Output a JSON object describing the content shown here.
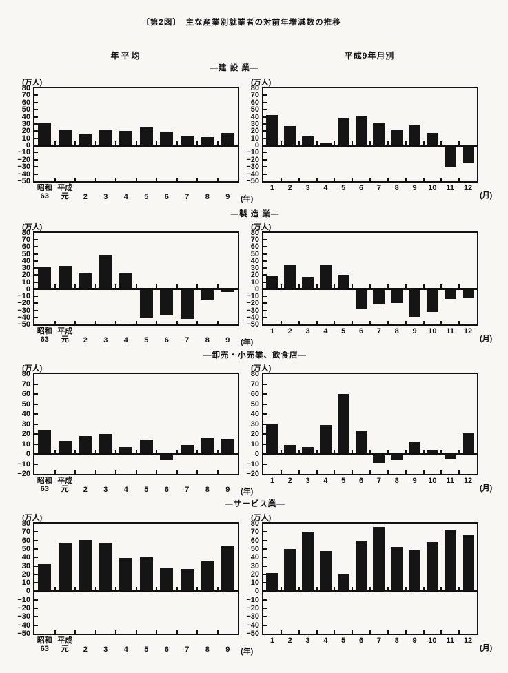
{
  "page": {
    "title": "〔第2図〕　主な産業別就業者の対前年増減数の推移",
    "column_headers": {
      "left": "年平均",
      "right": "平成9年月別"
    }
  },
  "rows": [
    {
      "title": "―建 設 業―"
    },
    {
      "title": "―製 造 業―"
    },
    {
      "title": "―卸売・小売業、飲食店―"
    },
    {
      "title": "―サービス業―"
    }
  ],
  "colors": {
    "bar": "#151515",
    "frame": "#111111",
    "background": "#f8f7f3"
  },
  "chart_data": [
    {
      "type": "bar",
      "industry": "建設業",
      "panel": "年平均",
      "ylabel": "(万人)",
      "ylim": [
        -50,
        80
      ],
      "ytick_step": 10,
      "categories": [
        "昭和\n63",
        "平成\n元",
        "2",
        "3",
        "4",
        "5",
        "6",
        "7",
        "8",
        "9"
      ],
      "x_suffix": "(年)",
      "values": [
        30,
        21,
        15,
        20,
        19,
        24,
        18,
        11,
        10,
        16
      ]
    },
    {
      "type": "bar",
      "industry": "建設業",
      "panel": "平成9年月別",
      "ylabel": "(万人)",
      "ylim": [
        -50,
        80
      ],
      "ytick_step": 10,
      "categories": [
        "1",
        "2",
        "3",
        "4",
        "5",
        "6",
        "7",
        "8",
        "9",
        "10",
        "11",
        "12"
      ],
      "x_suffix": "(月)",
      "values": [
        41,
        26,
        11,
        2,
        36,
        39,
        29,
        21,
        28,
        16,
        -28,
        -24
      ]
    },
    {
      "type": "bar",
      "industry": "製造業",
      "panel": "年平均",
      "ylabel": "(万人)",
      "ylim": [
        -50,
        80
      ],
      "ytick_step": 10,
      "categories": [
        "昭和\n63",
        "平成\n元",
        "2",
        "3",
        "4",
        "5",
        "6",
        "7",
        "8",
        "9"
      ],
      "x_suffix": "(年)",
      "values": [
        30,
        32,
        22,
        47,
        21,
        -39,
        -36,
        -41,
        -13,
        -3
      ]
    },
    {
      "type": "bar",
      "industry": "製造業",
      "panel": "平成9年月別",
      "ylabel": "(万人)",
      "ylim": [
        -50,
        80
      ],
      "ytick_step": 10,
      "categories": [
        "1",
        "2",
        "3",
        "4",
        "5",
        "6",
        "7",
        "8",
        "9",
        "10",
        "11",
        "12"
      ],
      "x_suffix": "(月)",
      "values": [
        17,
        34,
        16,
        34,
        19,
        -26,
        -20,
        -18,
        -38,
        -31,
        -12,
        -10
      ]
    },
    {
      "type": "bar",
      "industry": "卸売・小売業、飲食店",
      "panel": "年平均",
      "ylabel": "(万人)",
      "ylim": [
        -20,
        80
      ],
      "ytick_step": 10,
      "categories": [
        "昭和\n63",
        "平成\n元",
        "2",
        "3",
        "4",
        "5",
        "6",
        "7",
        "8",
        "9"
      ],
      "x_suffix": "(年)",
      "values": [
        23,
        12,
        17,
        19,
        6,
        13,
        -5,
        8,
        15,
        14
      ]
    },
    {
      "type": "bar",
      "industry": "卸売・小売業、飲食店",
      "panel": "平成9年月別",
      "ylabel": "(万人)",
      "ylim": [
        -20,
        80
      ],
      "ytick_step": 10,
      "categories": [
        "1",
        "2",
        "3",
        "4",
        "5",
        "6",
        "7",
        "8",
        "9",
        "10",
        "11",
        "12"
      ],
      "x_suffix": "(月)",
      "values": [
        29,
        8,
        6,
        28,
        59,
        22,
        -8,
        -5,
        11,
        3,
        -4,
        20
      ]
    },
    {
      "type": "bar",
      "industry": "サービス業",
      "panel": "年平均",
      "ylabel": "(万人)",
      "ylim": [
        -50,
        80
      ],
      "ytick_step": 10,
      "categories": [
        "昭和\n63",
        "平成\n元",
        "2",
        "3",
        "4",
        "5",
        "6",
        "7",
        "8",
        "9"
      ],
      "x_suffix": "(年)",
      "values": [
        31,
        55,
        59,
        55,
        38,
        39,
        27,
        25,
        34,
        52
      ]
    },
    {
      "type": "bar",
      "industry": "サービス業",
      "panel": "平成9年月別",
      "ylabel": "(万人)",
      "ylim": [
        -50,
        80
      ],
      "ytick_step": 10,
      "categories": [
        "1",
        "2",
        "3",
        "4",
        "5",
        "6",
        "7",
        "8",
        "9",
        "10",
        "11",
        "12"
      ],
      "x_suffix": "(月)",
      "values": [
        20,
        49,
        69,
        46,
        19,
        58,
        75,
        51,
        48,
        57,
        71,
        65
      ]
    }
  ]
}
